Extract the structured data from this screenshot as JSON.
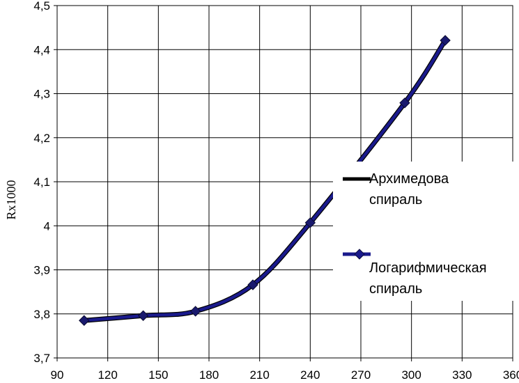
{
  "chart_data": {
    "type": "line",
    "title": "",
    "xlabel": "",
    "ylabel": "Rx1000",
    "xlim": [
      90,
      360
    ],
    "ylim": [
      3.7,
      4.5
    ],
    "xticks": [
      90,
      120,
      150,
      180,
      210,
      240,
      270,
      300,
      330,
      360
    ],
    "xtick_labels": [
      "90",
      "120",
      "150",
      "180",
      "210",
      "240",
      "270",
      "300",
      "330",
      "360"
    ],
    "yticks": [
      3.7,
      3.8,
      3.9,
      4.0,
      4.1,
      4.2,
      4.3,
      4.4,
      4.5
    ],
    "ytick_labels": [
      "3,7",
      "3,8",
      "3,9",
      "4",
      "4,1",
      "4,2",
      "4,3",
      "4,4",
      "4,5"
    ],
    "grid": true,
    "legend_position": "right",
    "series": [
      {
        "name": "Архимедова спираль",
        "color": "#000000",
        "marker": "none",
        "x": [
          106,
          141,
          172,
          206,
          240,
          296,
          320
        ],
        "y": [
          3.785,
          3.796,
          3.806,
          3.866,
          4.007,
          4.279,
          4.421
        ]
      },
      {
        "name": "Логарифмическая спираль",
        "color": "#1a1a8c",
        "marker": "diamond",
        "x": [
          106,
          141,
          172,
          206,
          240,
          296,
          320
        ],
        "y": [
          3.785,
          3.796,
          3.806,
          3.866,
          4.007,
          4.279,
          4.421
        ]
      }
    ]
  },
  "legend": {
    "item1_line1": "Архимедова",
    "item1_line2": "спираль",
    "item2_line1": "Логарифмическая",
    "item2_line2": "спираль"
  }
}
